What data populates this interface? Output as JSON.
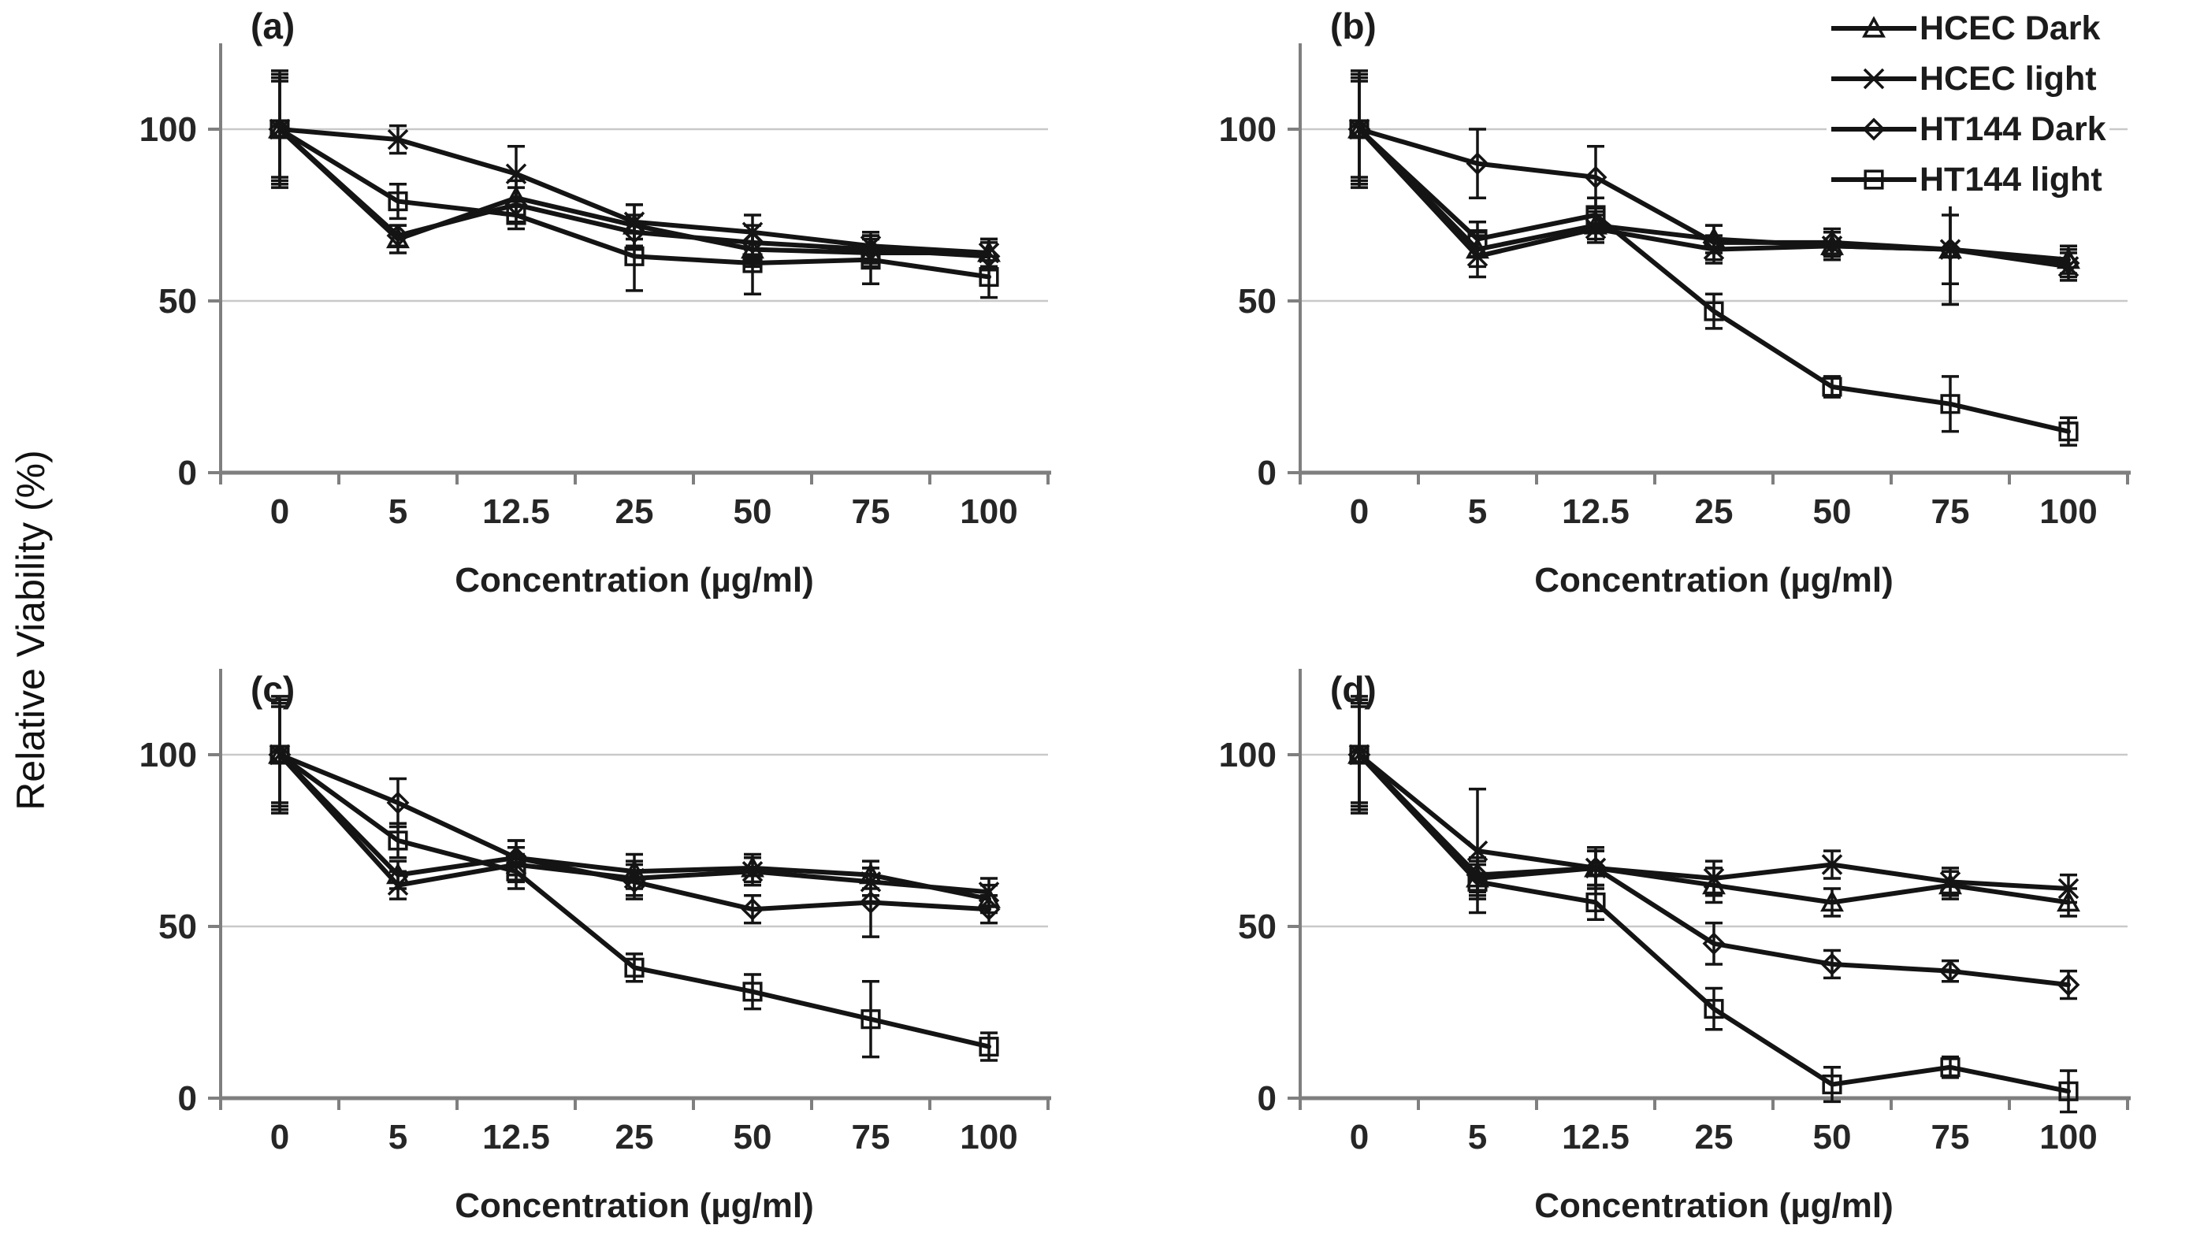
{
  "figure": {
    "y_axis_label": "Relative Viability (%)",
    "x_axis_label": "Concentration (µg/ml)"
  },
  "legend": {
    "position": "top-right",
    "items": [
      {
        "label": "HCEC Dark",
        "marker": "triangle"
      },
      {
        "label": "HCEC light",
        "marker": "x"
      },
      {
        "label": "HT144 Dark",
        "marker": "diamond"
      },
      {
        "label": "HT144 light",
        "marker": "square"
      }
    ]
  },
  "style": {
    "line_color": "#141414",
    "axis_color": "#7f7f7f",
    "grid_color": "#c9c9c9",
    "text_color": "#262626"
  },
  "chart_data": [
    {
      "type": "line",
      "panel": "(a)",
      "x": [
        0,
        5,
        12.5,
        25,
        50,
        75,
        100
      ],
      "x_tick_labels": [
        "0",
        "5",
        "12.5",
        "25",
        "50",
        "75",
        "100"
      ],
      "xlabel": "Concentration (µg/ml)",
      "ylabel": "Relative Viability (%)",
      "ylim": [
        0,
        125
      ],
      "yticks": [
        0,
        50,
        100
      ],
      "grid": "horizontal",
      "legend_visible": false,
      "series": [
        {
          "name": "HCEC Dark",
          "marker": "triangle",
          "values": [
            100,
            68,
            80,
            72,
            65,
            64,
            64
          ],
          "errors": [
            16,
            4,
            5,
            6,
            5,
            4,
            4
          ]
        },
        {
          "name": "HCEC light",
          "marker": "x",
          "values": [
            100,
            97,
            87,
            73,
            70,
            66,
            64
          ],
          "errors": [
            14,
            4,
            8,
            5,
            5,
            4,
            4
          ]
        },
        {
          "name": "HT144 Dark",
          "marker": "diamond",
          "values": [
            100,
            69,
            78,
            70,
            67,
            65,
            63
          ],
          "errors": [
            17,
            3,
            5,
            5,
            5,
            4,
            4
          ]
        },
        {
          "name": "HT144 light",
          "marker": "square",
          "values": [
            100,
            79,
            75,
            63,
            61,
            62,
            57
          ],
          "errors": [
            15,
            5,
            4,
            10,
            9,
            7,
            6
          ]
        }
      ]
    },
    {
      "type": "line",
      "panel": "(b)",
      "x": [
        0,
        5,
        12.5,
        25,
        50,
        75,
        100
      ],
      "x_tick_labels": [
        "0",
        "5",
        "12.5",
        "25",
        "50",
        "75",
        "100"
      ],
      "xlabel": "Concentration (µg/ml)",
      "ylabel": "Relative Viability (%)",
      "ylim": [
        0,
        125
      ],
      "yticks": [
        0,
        50,
        100
      ],
      "grid": "horizontal",
      "legend_visible": true,
      "series": [
        {
          "name": "HCEC Dark",
          "marker": "triangle",
          "values": [
            100,
            65,
            72,
            68,
            66,
            65,
            62
          ],
          "errors": [
            16,
            5,
            4,
            4,
            4,
            16,
            4
          ]
        },
        {
          "name": "HCEC light",
          "marker": "x",
          "values": [
            100,
            63,
            71,
            65,
            66,
            65,
            60
          ],
          "errors": [
            14,
            6,
            4,
            4,
            4,
            16,
            4
          ]
        },
        {
          "name": "HT144 Dark",
          "marker": "diamond",
          "values": [
            100,
            90,
            86,
            67,
            67,
            65,
            61
          ],
          "errors": [
            17,
            10,
            9,
            5,
            4,
            10,
            4
          ]
        },
        {
          "name": "HT144 light",
          "marker": "square",
          "values": [
            100,
            68,
            75,
            47,
            25,
            20,
            12
          ],
          "errors": [
            15,
            5,
            5,
            5,
            3,
            8,
            4
          ]
        }
      ]
    },
    {
      "type": "line",
      "panel": "(c)",
      "x": [
        0,
        5,
        12.5,
        25,
        50,
        75,
        100
      ],
      "x_tick_labels": [
        "0",
        "5",
        "12.5",
        "25",
        "50",
        "75",
        "100"
      ],
      "xlabel": "Concentration (µg/ml)",
      "ylabel": "Relative Viability (%)",
      "ylim": [
        0,
        125
      ],
      "yticks": [
        0,
        50,
        100
      ],
      "grid": "horizontal",
      "legend_visible": false,
      "series": [
        {
          "name": "HCEC Dark",
          "marker": "triangle",
          "values": [
            100,
            65,
            70,
            66,
            67,
            65,
            58
          ],
          "errors": [
            16,
            4,
            5,
            5,
            4,
            4,
            4
          ]
        },
        {
          "name": "HCEC light",
          "marker": "x",
          "values": [
            100,
            62,
            68,
            64,
            66,
            63,
            60
          ],
          "errors": [
            14,
            4,
            5,
            5,
            4,
            4,
            4
          ]
        },
        {
          "name": "HT144 Dark",
          "marker": "diamond",
          "values": [
            100,
            86,
            70,
            63,
            55,
            57,
            55
          ],
          "errors": [
            17,
            7,
            5,
            5,
            4,
            10,
            4
          ]
        },
        {
          "name": "HT144 light",
          "marker": "square",
          "values": [
            100,
            75,
            66,
            38,
            31,
            23,
            15
          ],
          "errors": [
            15,
            5,
            5,
            4,
            5,
            11,
            4
          ]
        }
      ]
    },
    {
      "type": "line",
      "panel": "(d)",
      "x": [
        0,
        5,
        12.5,
        25,
        50,
        75,
        100
      ],
      "x_tick_labels": [
        "0",
        "5",
        "12.5",
        "25",
        "50",
        "75",
        "100"
      ],
      "xlabel": "Concentration (µg/ml)",
      "ylabel": "Relative Viability (%)",
      "ylim": [
        0,
        125
      ],
      "yticks": [
        0,
        50,
        100
      ],
      "grid": "horizontal",
      "legend_visible": false,
      "series": [
        {
          "name": "HCEC Dark",
          "marker": "triangle",
          "values": [
            100,
            64,
            67,
            62,
            57,
            62,
            57
          ],
          "errors": [
            16,
            5,
            5,
            5,
            4,
            4,
            4
          ]
        },
        {
          "name": "HCEC light",
          "marker": "x",
          "values": [
            100,
            72,
            67,
            64,
            68,
            63,
            61
          ],
          "errors": [
            14,
            18,
            5,
            5,
            4,
            4,
            4
          ]
        },
        {
          "name": "HT144 Dark",
          "marker": "diamond",
          "values": [
            100,
            65,
            67,
            45,
            39,
            37,
            33
          ],
          "errors": [
            17,
            5,
            6,
            6,
            4,
            3,
            4
          ]
        },
        {
          "name": "HT144 light",
          "marker": "square",
          "values": [
            100,
            63,
            57,
            26,
            4,
            9,
            2
          ],
          "errors": [
            15,
            5,
            5,
            6,
            5,
            3,
            6
          ]
        }
      ]
    }
  ]
}
